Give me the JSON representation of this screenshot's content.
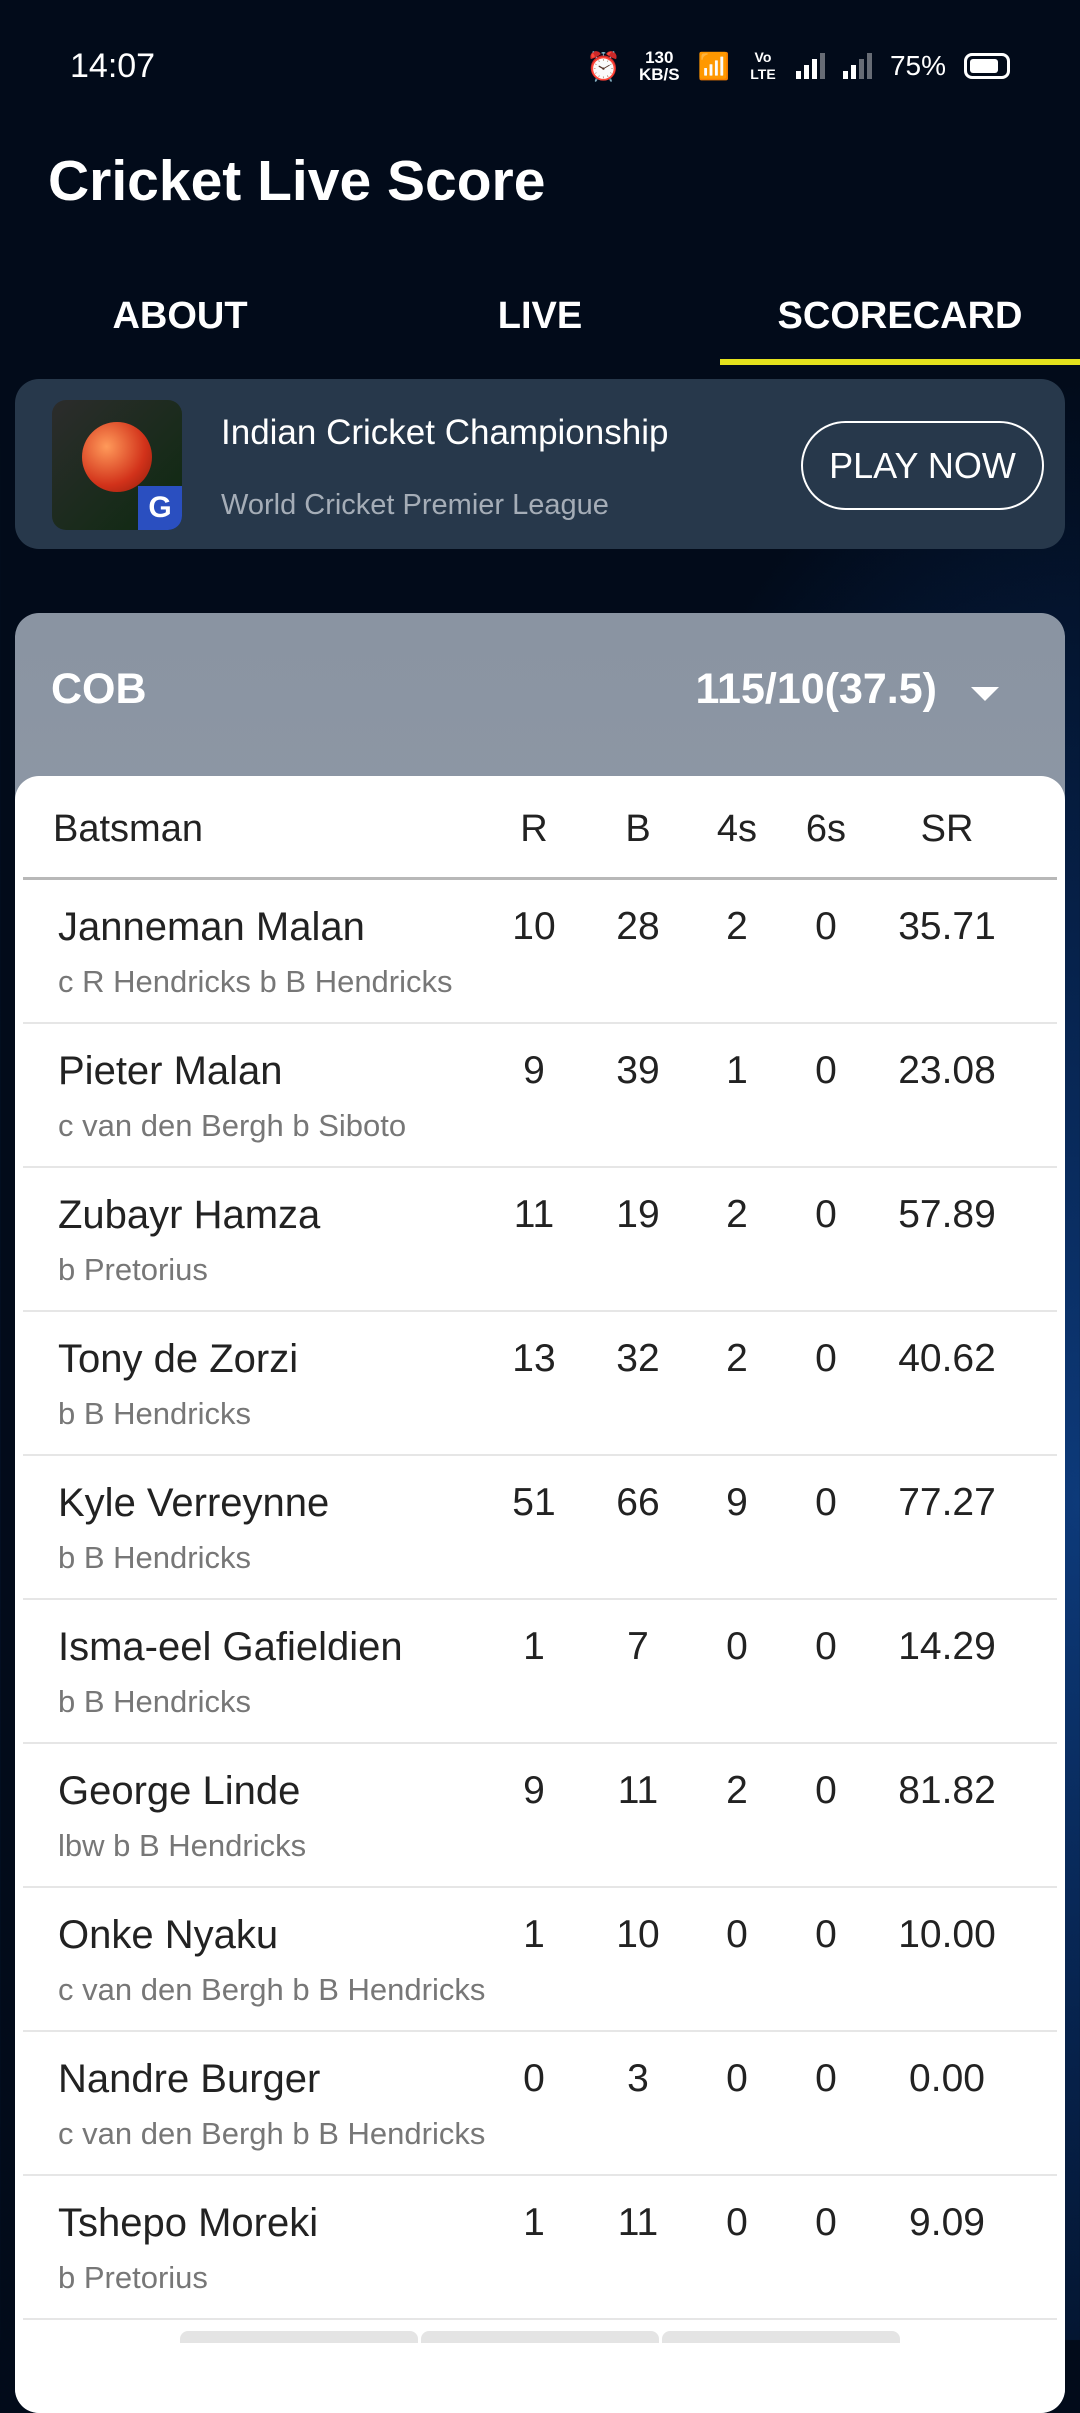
{
  "status": {
    "time": "14:07",
    "net_speed": "130",
    "net_unit": "KB/S",
    "volte": "Vo LTE",
    "battery": "75%"
  },
  "app": {
    "title": "Cricket Live Score"
  },
  "tabs": [
    {
      "label": "ABOUT"
    },
    {
      "label": "LIVE"
    },
    {
      "label": "SCORECARD",
      "active": true
    }
  ],
  "ad": {
    "title": "Indian Cricket Championship",
    "subtitle": "World Cricket Premier League",
    "cta": "PLAY NOW",
    "icon_badge": "G"
  },
  "accent_color": "#e4e21d",
  "innings": {
    "team": "COB",
    "score": "115/10(37.5)"
  },
  "table": {
    "headers": [
      "Batsman",
      "R",
      "B",
      "4s",
      "6s",
      "SR"
    ],
    "rows": [
      {
        "name": "Janneman Malan",
        "dismissal": "c R Hendricks b B Hendricks",
        "r": "10",
        "b": "28",
        "fours": "2",
        "sixes": "0",
        "sr": "35.71"
      },
      {
        "name": "Pieter Malan",
        "dismissal": "c van den Bergh b Siboto",
        "r": "9",
        "b": "39",
        "fours": "1",
        "sixes": "0",
        "sr": "23.08"
      },
      {
        "name": "Zubayr Hamza",
        "dismissal": "b Pretorius",
        "r": "11",
        "b": "19",
        "fours": "2",
        "sixes": "0",
        "sr": "57.89"
      },
      {
        "name": "Tony de Zorzi",
        "dismissal": "b B Hendricks",
        "r": "13",
        "b": "32",
        "fours": "2",
        "sixes": "0",
        "sr": "40.62"
      },
      {
        "name": "Kyle Verreynne",
        "dismissal": "b B Hendricks",
        "r": "51",
        "b": "66",
        "fours": "9",
        "sixes": "0",
        "sr": "77.27"
      },
      {
        "name": "Isma-eel Gafieldien",
        "dismissal": "b B Hendricks",
        "r": "1",
        "b": "7",
        "fours": "0",
        "sixes": "0",
        "sr": "14.29"
      },
      {
        "name": "George Linde",
        "dismissal": "lbw b B Hendricks",
        "r": "9",
        "b": "11",
        "fours": "2",
        "sixes": "0",
        "sr": "81.82"
      },
      {
        "name": "Onke Nyaku",
        "dismissal": "c van den Bergh b B Hendricks",
        "r": "1",
        "b": "10",
        "fours": "0",
        "sixes": "0",
        "sr": "10.00"
      },
      {
        "name": "Nandre Burger",
        "dismissal": "c van den Bergh b B Hendricks",
        "r": "0",
        "b": "3",
        "fours": "0",
        "sixes": "0",
        "sr": "0.00"
      },
      {
        "name": "Tshepo Moreki",
        "dismissal": "b Pretorius",
        "r": "1",
        "b": "11",
        "fours": "0",
        "sixes": "0",
        "sr": "9.09"
      }
    ]
  }
}
